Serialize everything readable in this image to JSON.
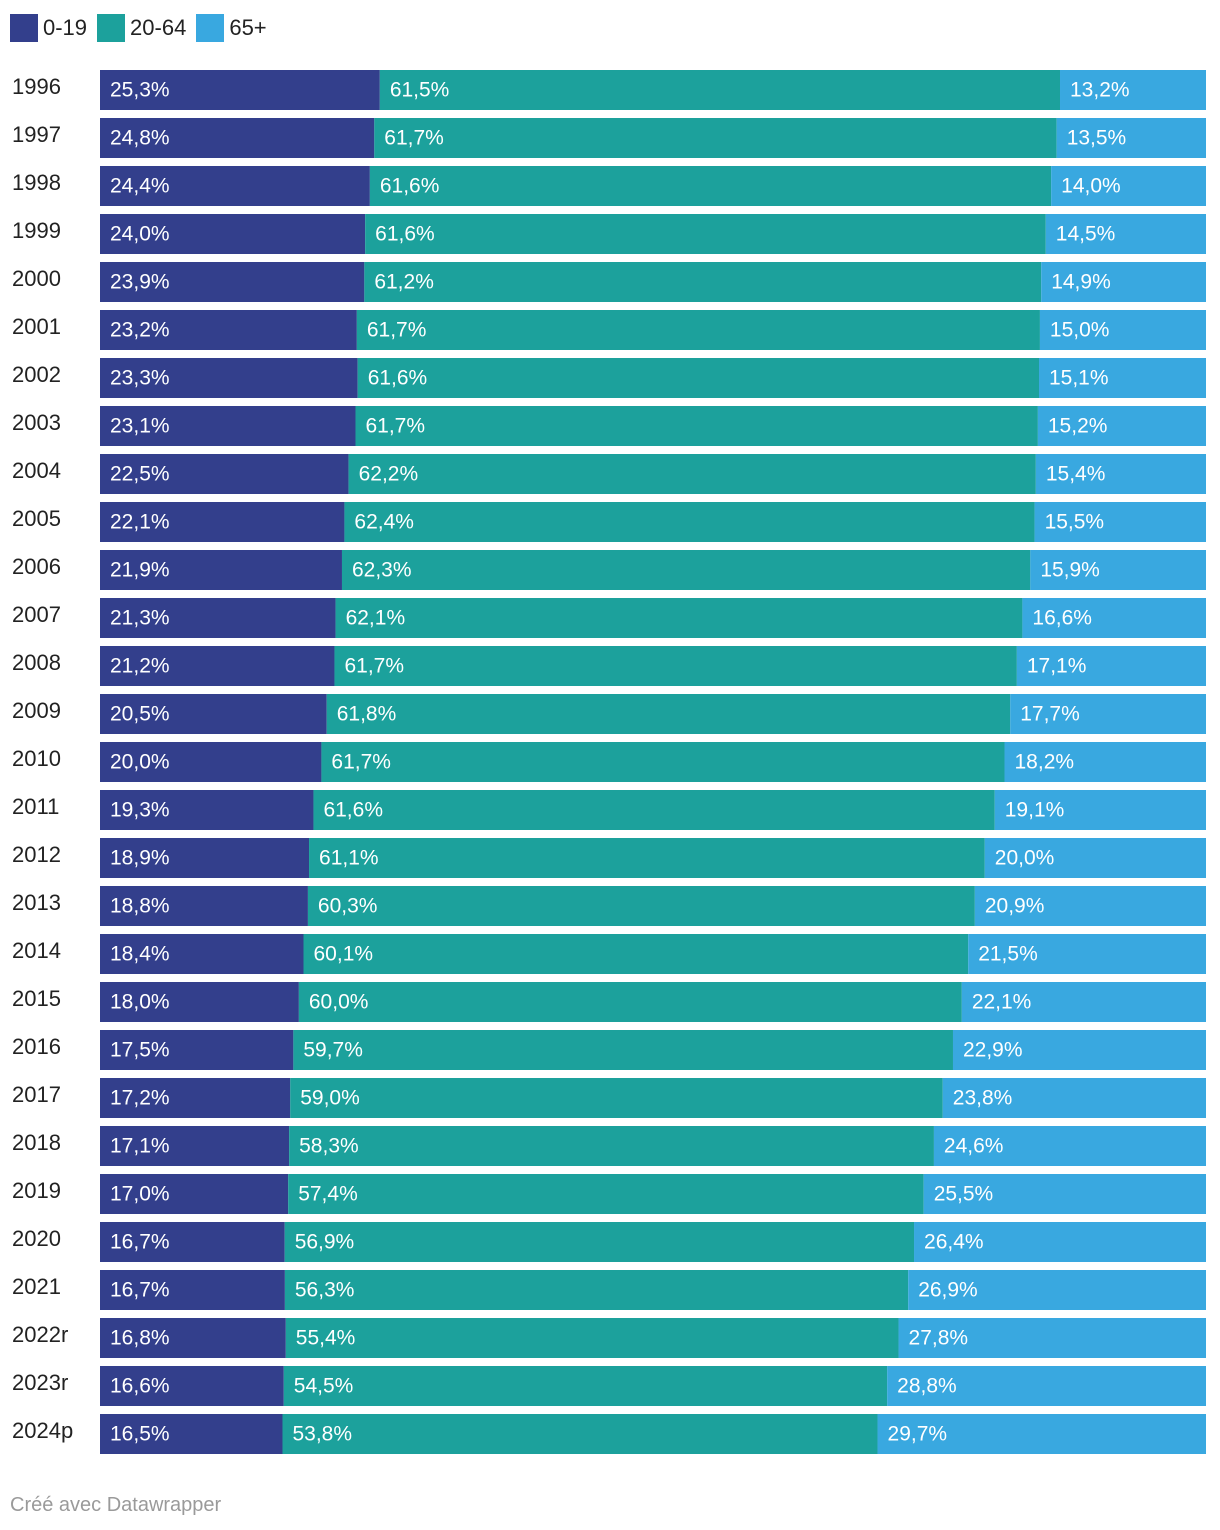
{
  "chart_data": {
    "type": "bar",
    "orientation": "horizontal",
    "stacked": true,
    "title": "",
    "xlabel": "",
    "ylabel": "",
    "xlim": [
      0,
      100
    ],
    "grid": false,
    "legend_position": "top-left",
    "categories": [
      "1996",
      "1997",
      "1998",
      "1999",
      "2000",
      "2001",
      "2002",
      "2003",
      "2004",
      "2005",
      "2006",
      "2007",
      "2008",
      "2009",
      "2010",
      "2011",
      "2012",
      "2013",
      "2014",
      "2015",
      "2016",
      "2017",
      "2018",
      "2019",
      "2020",
      "2021",
      "2022r",
      "2023r",
      "2024p"
    ],
    "series": [
      {
        "name": "0-19",
        "color": "#333f8c",
        "values": [
          25.3,
          24.8,
          24.4,
          24.0,
          23.9,
          23.2,
          23.3,
          23.1,
          22.5,
          22.1,
          21.9,
          21.3,
          21.2,
          20.5,
          20.0,
          19.3,
          18.9,
          18.8,
          18.4,
          18.0,
          17.5,
          17.2,
          17.1,
          17.0,
          16.7,
          16.7,
          16.8,
          16.6,
          16.5
        ]
      },
      {
        "name": "20-64",
        "color": "#1ca19c",
        "values": [
          61.5,
          61.7,
          61.6,
          61.6,
          61.2,
          61.7,
          61.6,
          61.7,
          62.2,
          62.4,
          62.3,
          62.1,
          61.7,
          61.8,
          61.7,
          61.6,
          61.1,
          60.3,
          60.1,
          60.0,
          59.7,
          59.0,
          58.3,
          57.4,
          56.9,
          56.3,
          55.4,
          54.5,
          53.8
        ]
      },
      {
        "name": "65+",
        "color": "#39a8e0",
        "values": [
          13.2,
          13.5,
          14.0,
          14.5,
          14.9,
          15.0,
          15.1,
          15.2,
          15.4,
          15.5,
          15.9,
          16.6,
          17.1,
          17.7,
          18.2,
          19.1,
          20.0,
          20.9,
          21.5,
          22.1,
          22.9,
          23.8,
          24.6,
          25.5,
          26.4,
          26.9,
          27.8,
          28.8,
          29.7
        ]
      }
    ],
    "value_label_format": "comma-decimal-percent"
  },
  "footer": {
    "credit": "Créé avec Datawrapper"
  }
}
